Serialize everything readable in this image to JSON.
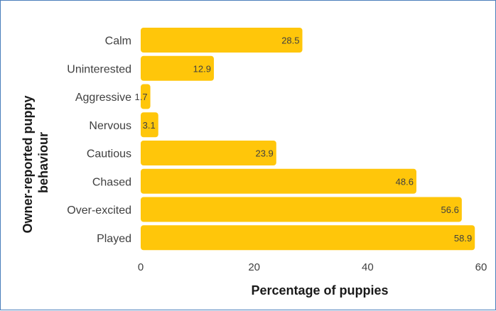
{
  "chart_data": {
    "type": "bar",
    "orientation": "horizontal",
    "categories": [
      "Calm",
      "Uninterested",
      "Aggressive",
      "Nervous",
      "Cautious",
      "Chased",
      "Over-excited",
      "Played"
    ],
    "values": [
      28.5,
      12.9,
      1.7,
      3.1,
      23.9,
      48.6,
      56.6,
      58.9
    ],
    "data_labels": [
      "28.5",
      "12.9",
      "1.7",
      "3.1",
      "23.9",
      "48.6",
      "56.6",
      "58.9"
    ],
    "xlabel": "Percentage of puppies",
    "ylabel": "Owner-reported puppy behaviour",
    "xlim": [
      0,
      60
    ],
    "xticks": [
      "0",
      "20",
      "40",
      "60"
    ],
    "grid": false,
    "bar_color": "#ffc60a"
  }
}
